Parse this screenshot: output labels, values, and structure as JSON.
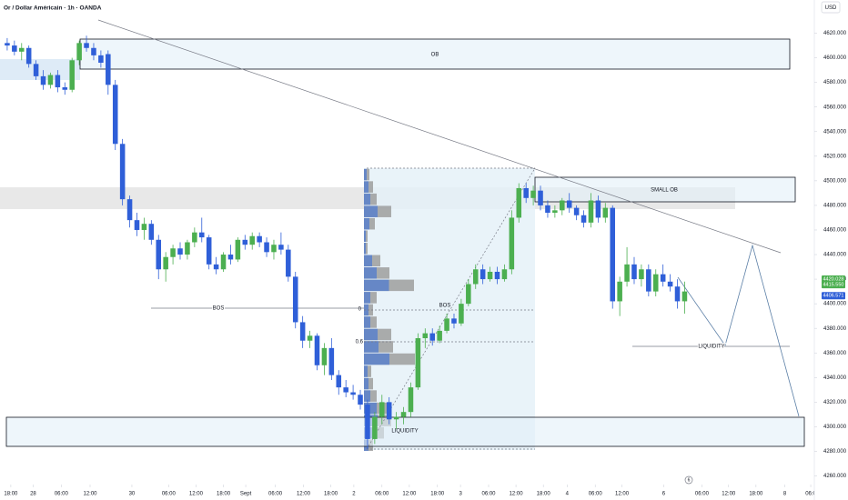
{
  "chart_data": {
    "type": "candlestick",
    "title": "Or / Dollar Américain · 1h · OANDA",
    "currency": "USD",
    "up_color": "#4caf50",
    "down_color": "#2f5fd8",
    "grid": false,
    "open": [
      4612,
      4610,
      4605,
      4608,
      4595,
      4585,
      4578,
      4586,
      4576,
      4574,
      4598,
      4612,
      4608,
      4602,
      4603,
      4578,
      4530,
      4485,
      4468,
      4460,
      4465,
      4452,
      4428,
      4438,
      4445,
      4440,
      4450,
      4458,
      4454,
      4432,
      4428,
      4440,
      4436,
      4452,
      4448,
      4455,
      4450,
      4442,
      4448,
      4444,
      4422,
      4385,
      4370,
      4374,
      4350,
      4364,
      4342,
      4332,
      4328,
      4326,
      4318,
      4290,
      4308,
      4320,
      4306,
      4308,
      4312,
      4332,
      4372,
      4376,
      4370,
      4378,
      4388,
      4384,
      4400,
      4416,
      4428,
      4420,
      4426,
      4420,
      4428,
      4470,
      4494,
      4486,
      4492,
      4480,
      4474,
      4476,
      4484,
      4478,
      4472,
      4466,
      4484,
      4470,
      4478,
      4402,
      4418,
      4432,
      4420,
      4428,
      4410,
      4424,
      4418,
      4414,
      4402
    ],
    "high": [
      4616,
      4614,
      4612,
      4610,
      4598,
      4590,
      4588,
      4590,
      4580,
      4600,
      4614,
      4618,
      4612,
      4606,
      4606,
      4582,
      4534,
      4488,
      4474,
      4470,
      4468,
      4456,
      4442,
      4448,
      4450,
      4452,
      4462,
      4470,
      4456,
      4438,
      4442,
      4448,
      4454,
      4456,
      4458,
      4458,
      4454,
      4452,
      4458,
      4448,
      4426,
      4390,
      4378,
      4376,
      4368,
      4372,
      4346,
      4338,
      4334,
      4330,
      4322,
      4312,
      4326,
      4324,
      4312,
      4316,
      4336,
      4376,
      4380,
      4380,
      4382,
      4392,
      4392,
      4404,
      4420,
      4432,
      4432,
      4430,
      4430,
      4432,
      4476,
      4498,
      4498,
      4496,
      4496,
      4484,
      4480,
      4486,
      4490,
      4480,
      4476,
      4490,
      4488,
      4482,
      4480,
      4422,
      4446,
      4438,
      4432,
      4432,
      4428,
      4432,
      4424,
      4420,
      4418
    ],
    "low": [
      4606,
      4602,
      4598,
      4592,
      4582,
      4574,
      4575,
      4572,
      4570,
      4572,
      4594,
      4605,
      4598,
      4592,
      4570,
      4525,
      4480,
      4462,
      4455,
      4452,
      4448,
      4420,
      4418,
      4432,
      4436,
      4436,
      4446,
      4450,
      4428,
      4424,
      4426,
      4432,
      4434,
      4444,
      4444,
      4446,
      4438,
      4436,
      4440,
      4418,
      4380,
      4364,
      4364,
      4346,
      4342,
      4338,
      4326,
      4324,
      4322,
      4314,
      4282,
      4286,
      4302,
      4302,
      4298,
      4302,
      4308,
      4330,
      4364,
      4366,
      4368,
      4376,
      4380,
      4382,
      4398,
      4412,
      4416,
      4418,
      4416,
      4418,
      4424,
      4466,
      4482,
      4480,
      4476,
      4470,
      4470,
      4472,
      4474,
      4468,
      4462,
      4462,
      4466,
      4466,
      4396,
      4390,
      4414,
      4416,
      4414,
      4406,
      4406,
      4414,
      4410,
      4396,
      4392
    ],
    "close": [
      4610,
      4605,
      4608,
      4595,
      4585,
      4578,
      4586,
      4576,
      4574,
      4598,
      4612,
      4608,
      4602,
      4596,
      4578,
      4530,
      4485,
      4468,
      4460,
      4465,
      4452,
      4428,
      4438,
      4445,
      4440,
      4450,
      4458,
      4454,
      4432,
      4428,
      4440,
      4436,
      4452,
      4448,
      4455,
      4450,
      4442,
      4448,
      4444,
      4422,
      4385,
      4370,
      4374,
      4350,
      4364,
      4342,
      4332,
      4328,
      4326,
      4318,
      4290,
      4308,
      4320,
      4306,
      4308,
      4312,
      4332,
      4372,
      4376,
      4370,
      4378,
      4388,
      4384,
      4400,
      4416,
      4428,
      4420,
      4426,
      4420,
      4428,
      4470,
      4494,
      4486,
      4492,
      4480,
      4474,
      4476,
      4484,
      4478,
      4472,
      4466,
      4484,
      4470,
      4478,
      4402,
      4418,
      4432,
      4420,
      4428,
      4410,
      4424,
      4418,
      4414,
      4402,
      4410
    ],
    "xlim": [
      -1,
      112
    ],
    "xticks": [
      {
        "value": 0.5,
        "label": "18:00"
      },
      {
        "value": 3.6,
        "label": "28"
      },
      {
        "value": 7.5,
        "label": "06:00"
      },
      {
        "value": 11.5,
        "label": "12:00"
      },
      {
        "value": 17.3,
        "label": "30"
      },
      {
        "value": 22.4,
        "label": "06:00"
      },
      {
        "value": 26.2,
        "label": "12:00"
      },
      {
        "value": 30.0,
        "label": "18:00"
      },
      {
        "value": 33.1,
        "label": "Sept"
      },
      {
        "value": 37.2,
        "label": "06:00"
      },
      {
        "value": 41.1,
        "label": "12:00"
      },
      {
        "value": 44.9,
        "label": "18:00"
      },
      {
        "value": 48.1,
        "label": "2"
      },
      {
        "value": 52.0,
        "label": "06:00"
      },
      {
        "value": 55.8,
        "label": "12:00"
      },
      {
        "value": 59.7,
        "label": "18:00"
      },
      {
        "value": 62.9,
        "label": "3"
      },
      {
        "value": 66.8,
        "label": "06:00"
      },
      {
        "value": 70.6,
        "label": "12:00"
      },
      {
        "value": 74.4,
        "label": "18:00"
      },
      {
        "value": 77.7,
        "label": "4"
      },
      {
        "value": 81.6,
        "label": "06:00"
      },
      {
        "value": 85.3,
        "label": "12:00"
      },
      {
        "value": 91.1,
        "label": "6"
      },
      {
        "value": 96.4,
        "label": "06:00"
      },
      {
        "value": 100.1,
        "label": "12:00"
      },
      {
        "value": 103.9,
        "label": "18:00"
      },
      {
        "value": 107.9,
        "label": "8"
      },
      {
        "value": 111.5,
        "label": "06:0"
      }
    ],
    "ylim": [
      4253,
      4647
    ],
    "yticks": [
      {
        "value": 4260,
        "label": "4260.000"
      },
      {
        "value": 4280,
        "label": "4280.000"
      },
      {
        "value": 4300,
        "label": "4300.000"
      },
      {
        "value": 4320,
        "label": "4320.000"
      },
      {
        "value": 4340,
        "label": "4340.000"
      },
      {
        "value": 4360,
        "label": "4360.000"
      },
      {
        "value": 4380,
        "label": "4380.000"
      },
      {
        "value": 4400,
        "label": "4400.000"
      },
      {
        "value": 4420,
        "label": "4420.000"
      },
      {
        "value": 4440,
        "label": "4440.000"
      },
      {
        "value": 4460,
        "label": "4460.000"
      },
      {
        "value": 4480,
        "label": "4480.000"
      },
      {
        "value": 4500,
        "label": "4500.000"
      },
      {
        "value": 4520,
        "label": "4520.000"
      },
      {
        "value": 4540,
        "label": "4540.000"
      },
      {
        "value": 4560,
        "label": "4560.000"
      },
      {
        "value": 4580,
        "label": "4580.000"
      },
      {
        "value": 4600,
        "label": "4600.000"
      },
      {
        "value": 4620,
        "label": "4620.000"
      }
    ],
    "price_tags": [
      {
        "value": 4420.028,
        "label": "4420.028",
        "color": "#4caf50"
      },
      {
        "value": 4415.55,
        "label": "4415.550",
        "color": "#4caf50"
      },
      {
        "value": 4406.571,
        "label": "4406.571",
        "color": "#2f5fd8"
      }
    ],
    "volume_profile": {
      "prices": [
        4505,
        4495,
        4485,
        4475,
        4465,
        4455,
        4445,
        4435,
        4425,
        4415,
        4405,
        4395,
        4385,
        4375,
        4365,
        4355,
        4345,
        4335,
        4325,
        4315,
        4305,
        4295,
        4285
      ],
      "volumes": [
        6,
        10,
        14,
        30,
        12,
        4,
        4,
        18,
        28,
        55,
        14,
        10,
        14,
        30,
        32,
        56,
        8,
        10,
        14,
        28,
        30,
        22,
        10
      ],
      "color": "#9e9e9e",
      "highlight_color": "#3a6fd8"
    },
    "annotations": [
      "OB",
      "SMALL OB",
      "BOS",
      "BOS",
      "LIQUIDITY",
      "LIQUIDITY",
      "0",
      "0.6"
    ],
    "marker": "6"
  }
}
